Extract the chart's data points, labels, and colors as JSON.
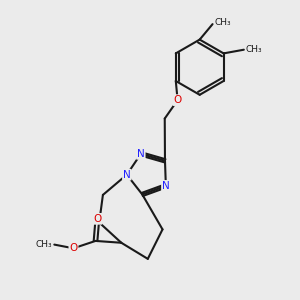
{
  "background_color": "#ebebeb",
  "bond_color": "#1a1a1a",
  "nitrogen_color": "#2020ff",
  "oxygen_color": "#dd0000",
  "bond_width": 1.5,
  "figsize": [
    3.0,
    3.0
  ],
  "dpi": 100,
  "xlim": [
    0.5,
    8.5
  ],
  "ylim": [
    0.5,
    8.5
  ]
}
